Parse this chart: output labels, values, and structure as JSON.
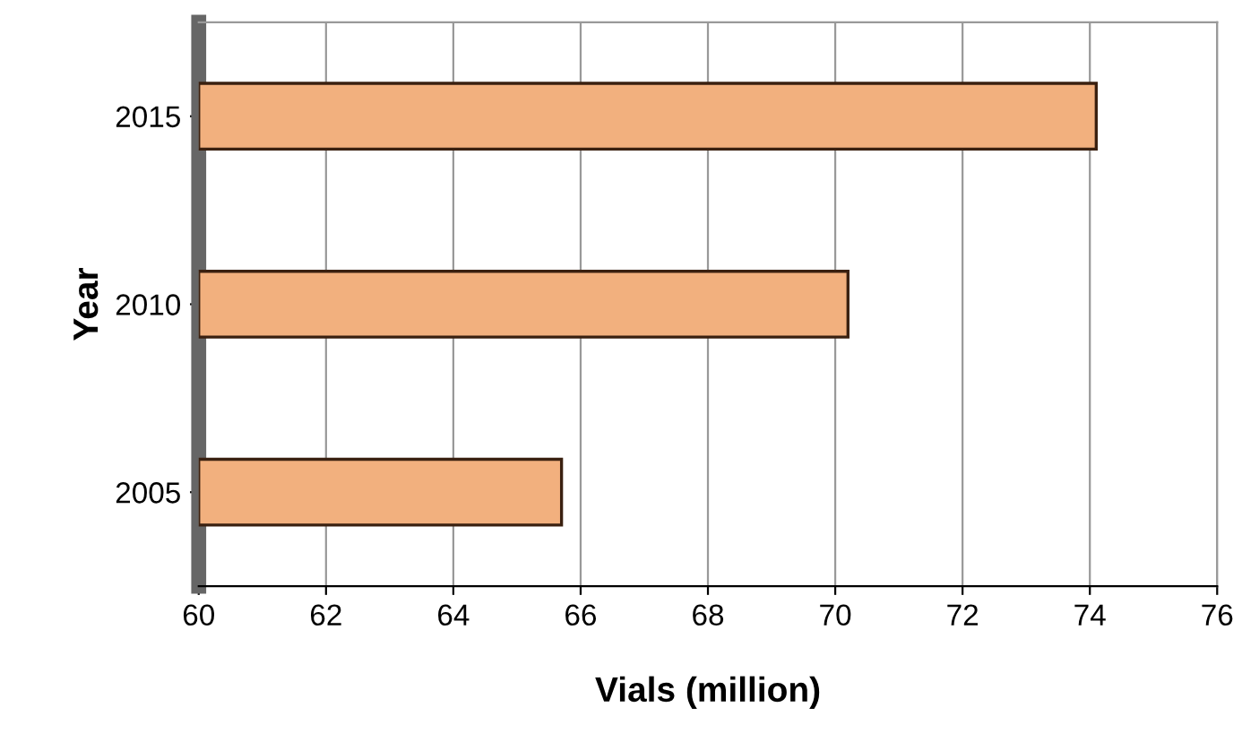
{
  "chart_data": {
    "type": "bar",
    "orientation": "horizontal",
    "categories": [
      "2015",
      "2010",
      "2005"
    ],
    "values": [
      74.1,
      70.2,
      65.7
    ],
    "color": "#f2b07e",
    "xlim": [
      60,
      76
    ],
    "xticks": [
      60,
      62,
      64,
      66,
      68,
      70,
      72,
      74,
      76
    ],
    "xlabel": "Vials (million)",
    "ylabel": "Year",
    "grid": "x"
  }
}
